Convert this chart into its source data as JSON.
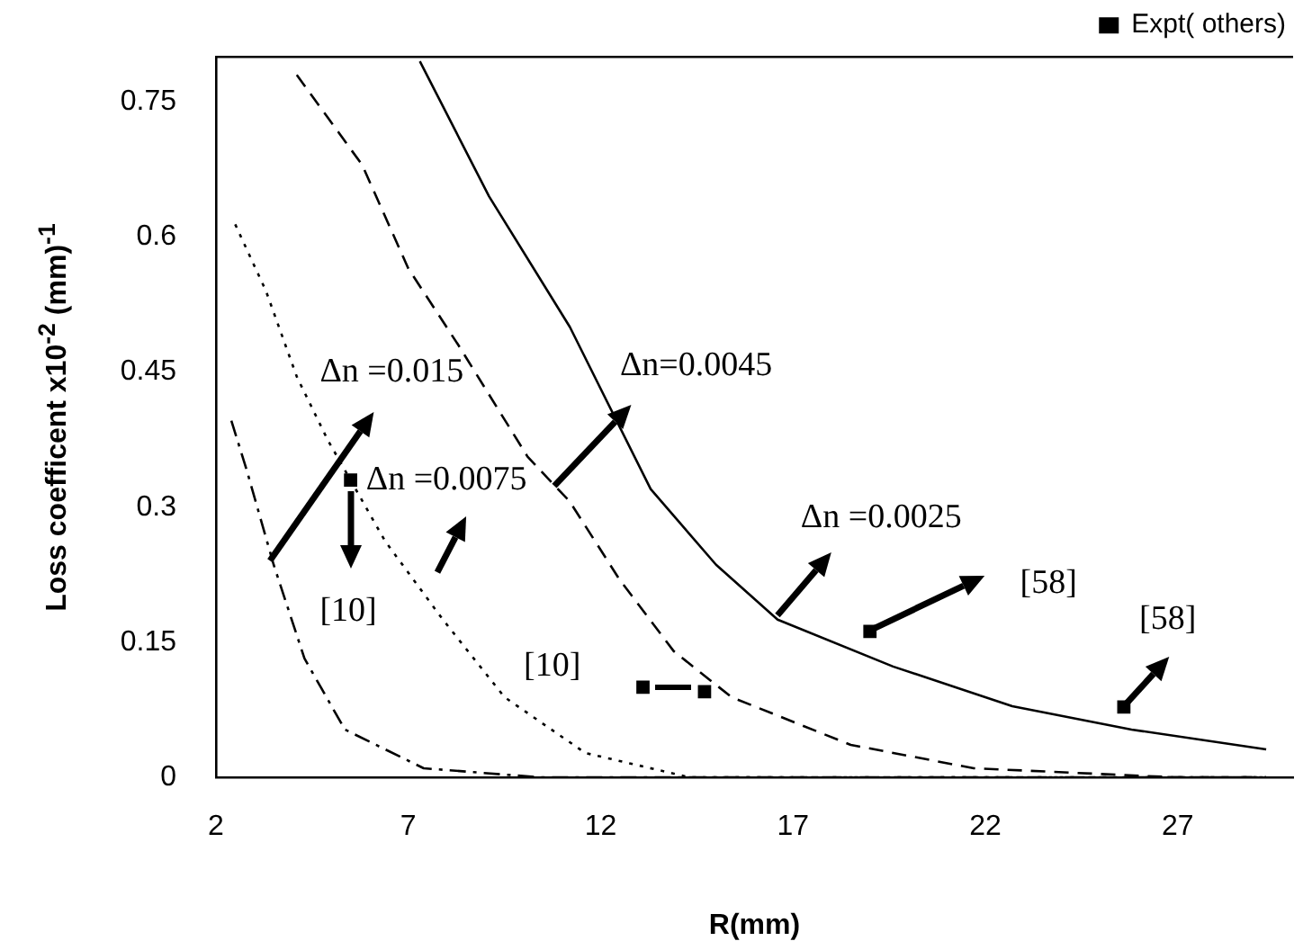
{
  "chart_data": {
    "type": "line",
    "xlabel": "R(mm)",
    "ylabel": "Loss coefficent x10$^{-2}$ (mm)$^{-1}$",
    "xlim": [
      2,
      30
    ],
    "xticks": [
      2,
      7,
      12,
      17,
      22,
      27
    ],
    "ylim": [
      0,
      0.8
    ],
    "yticks": [
      0,
      0.15,
      0.3,
      0.45,
      0.6,
      0.75
    ],
    "grid": false,
    "legend": "top right",
    "marker": "none",
    "series": [
      {
        "type": "line",
        "color": "#000000",
        "line_style": "solid",
        "x": [
          7.3,
          9.1,
          11.2,
          13.3,
          15.0,
          16.6,
          19.6,
          22.7,
          25.8,
          29.3
        ],
        "values": [
          0.795,
          0.645,
          0.5,
          0.32,
          0.236,
          0.175,
          0.123,
          0.079,
          0.053,
          0.031
        ]
      },
      {
        "type": "line",
        "color": "#000000",
        "line_style": "dashed",
        "x": [
          4.1,
          5.8,
          7.0,
          8.3,
          10.1,
          11.2,
          12.5,
          13.9,
          15.4,
          18.5,
          21.7,
          26.9,
          29.3
        ],
        "values": [
          0.78,
          0.68,
          0.565,
          0.48,
          0.356,
          0.306,
          0.219,
          0.14,
          0.089,
          0.036,
          0.01,
          0,
          0
        ]
      },
      {
        "type": "line",
        "color": "#000000",
        "line_style": "dotted",
        "x": [
          2.5,
          3.3,
          4.1,
          4.9,
          6.4,
          7.9,
          9.5,
          11.6,
          14.3,
          29.3
        ],
        "values": [
          0.614,
          0.54,
          0.445,
          0.375,
          0.262,
          0.175,
          0.089,
          0.027,
          0,
          0
        ]
      },
      {
        "type": "line",
        "color": "#000000",
        "line_style": "dashdot",
        "x": [
          2.4,
          2.8,
          3.5,
          4.3,
          5.35,
          7.4,
          10.4,
          29.3
        ],
        "values": [
          0.396,
          0.341,
          0.236,
          0.132,
          0.053,
          0.01,
          0,
          0
        ]
      },
      {
        "type": "scatter",
        "name": "Expt( others)",
        "color": "#000000",
        "marker": "square",
        "x": [
          5.5,
          13.1,
          14.7,
          19.0,
          25.6
        ],
        "values": [
          0.33,
          0.1,
          0.095,
          0.162,
          0.078
        ]
      }
    ],
    "annotations": [
      {
        "text": "Δn =0.015",
        "x": 3.4,
        "y": 0.24
      },
      "Δn =0.0075",
      {
        "text": "Δn=0.0045",
        "x": 10.8,
        "y": 0.323
      },
      {
        "text": "Δn =0.0025",
        "x": 16.6,
        "y": 0.18
      },
      "[10]",
      "[10]",
      "[58]",
      {
        "text": "[58]",
        "x": 25.6,
        "y": 0.078
      }
    ]
  }
}
